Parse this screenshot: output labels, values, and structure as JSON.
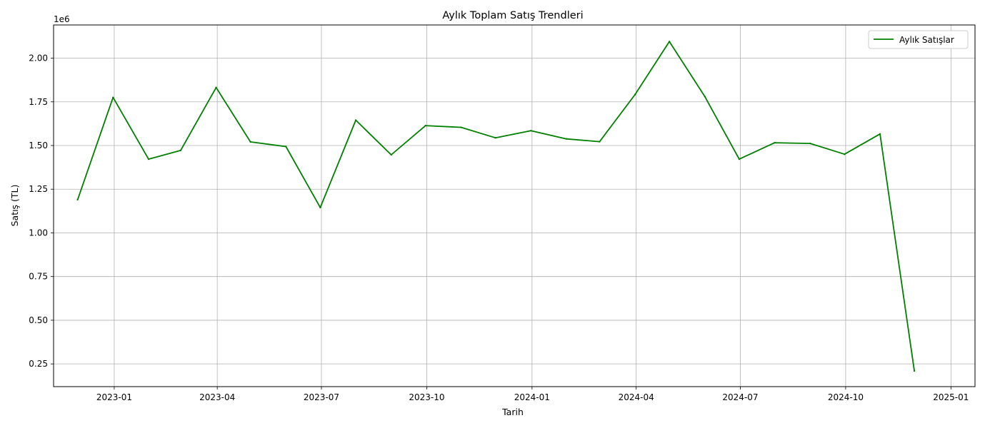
{
  "chart_data": {
    "type": "line",
    "title": "Aylık Toplam Satış Trendleri",
    "xlabel": "Tarih",
    "ylabel": "Satış (TL)",
    "y_multiplier_label": "1e6",
    "legend_position": "top-right",
    "grid": true,
    "xlim": [
      "2022-11-09",
      "2025-01-22"
    ],
    "ylim": [
      120000,
      2190000
    ],
    "x_ticks": [
      "2023-01-01",
      "2023-04-01",
      "2023-07-01",
      "2023-10-01",
      "2024-01-01",
      "2024-04-01",
      "2024-07-01",
      "2024-10-01",
      "2025-01-01"
    ],
    "x_tick_labels": [
      "2023-01",
      "2023-04",
      "2023-07",
      "2023-10",
      "2024-01",
      "2024-04",
      "2024-07",
      "2024-10",
      "2025-01"
    ],
    "y_ticks": [
      250000,
      500000,
      750000,
      1000000,
      1250000,
      1500000,
      1750000,
      2000000
    ],
    "y_tick_labels": [
      "0.25",
      "0.50",
      "0.75",
      "1.00",
      "1.25",
      "1.50",
      "1.75",
      "2.00"
    ],
    "series": [
      {
        "name": "Aylık Satışlar",
        "color": "#008000",
        "x": [
          "2022-11-30",
          "2022-12-31",
          "2023-01-31",
          "2023-02-28",
          "2023-03-31",
          "2023-04-30",
          "2023-05-31",
          "2023-06-30",
          "2023-07-31",
          "2023-08-31",
          "2023-09-30",
          "2023-10-31",
          "2023-11-30",
          "2023-12-31",
          "2024-01-31",
          "2024-02-29",
          "2024-03-31",
          "2024-04-30",
          "2024-05-31",
          "2024-06-30",
          "2024-07-31",
          "2024-08-31",
          "2024-09-30",
          "2024-10-31",
          "2024-11-30"
        ],
        "values": [
          1190000,
          1775000,
          1422000,
          1472000,
          1832000,
          1521000,
          1494000,
          1145000,
          1645000,
          1447000,
          1614000,
          1604000,
          1544000,
          1585000,
          1538000,
          1522000,
          1792000,
          2095000,
          1780000,
          1422000,
          1516000,
          1512000,
          1450000,
          1566000,
          210000
        ]
      }
    ]
  }
}
